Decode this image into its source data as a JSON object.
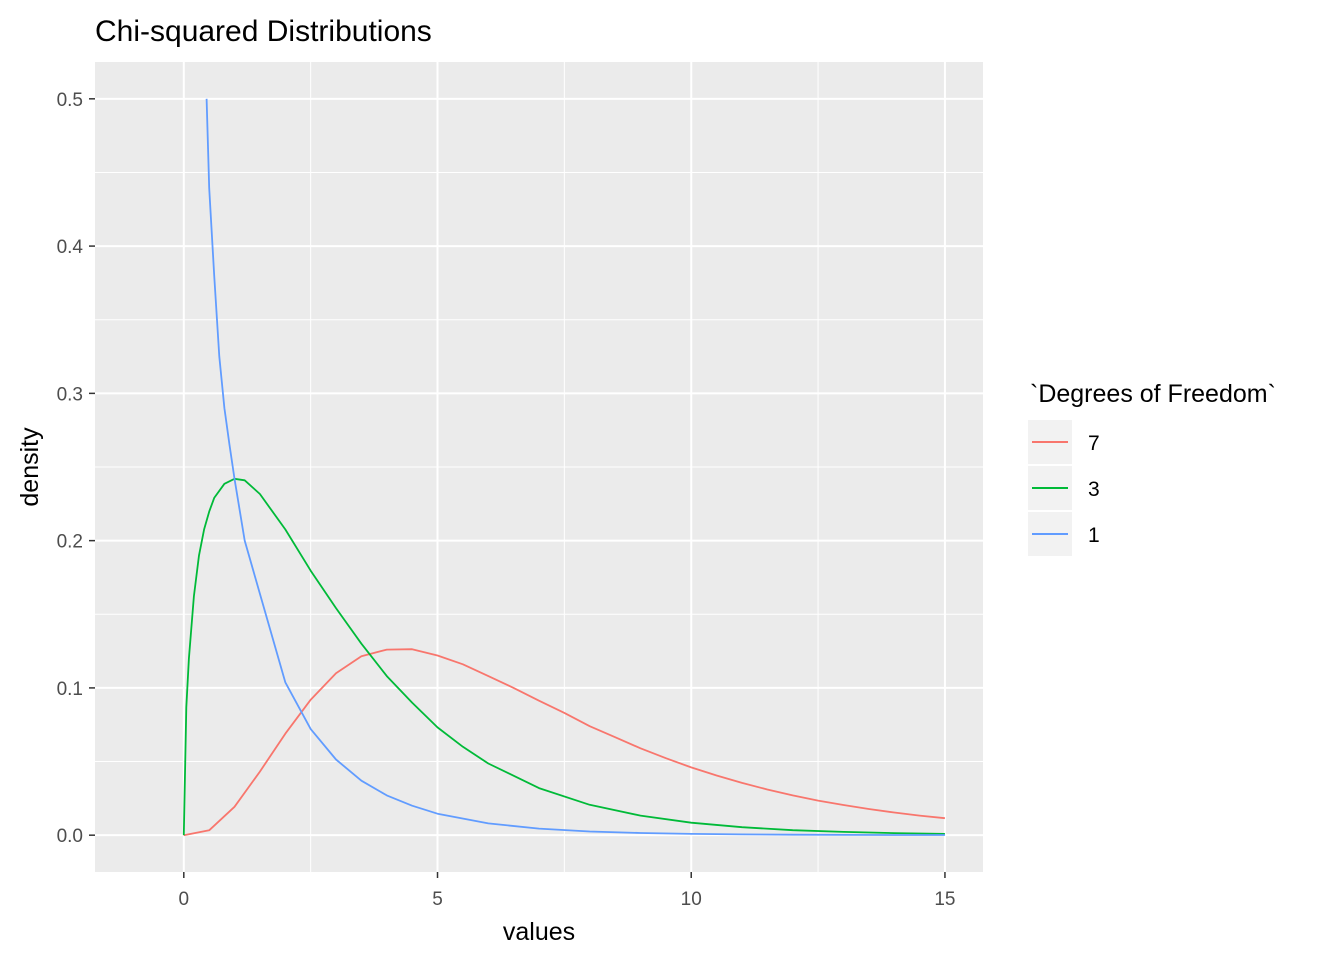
{
  "chart_data": {
    "type": "line",
    "title": "Chi-squared Distributions",
    "xlabel": "values",
    "ylabel": "density",
    "xlim": [
      -1.75,
      15.75
    ],
    "ylim": [
      -0.025,
      0.525
    ],
    "x_ticks": [
      0,
      5,
      10,
      15
    ],
    "x_tick_labels": [
      "0",
      "5",
      "10",
      "15"
    ],
    "y_ticks": [
      0.0,
      0.1,
      0.2,
      0.3,
      0.4,
      0.5
    ],
    "y_tick_labels": [
      "0.0",
      "0.1",
      "0.2",
      "0.3",
      "0.4",
      "0.5"
    ],
    "grid": true,
    "background": "#ebebeb",
    "legend": {
      "title": "`Degrees of Freedom`",
      "position": "right",
      "entries": [
        "7",
        "3",
        "1"
      ]
    },
    "series": [
      {
        "name": "7",
        "color": "#f8766d",
        "x": [
          0,
          0.5,
          1,
          1.5,
          2,
          2.5,
          3,
          3.5,
          4,
          4.5,
          5,
          5.5,
          6,
          6.5,
          7,
          7.5,
          8,
          8.5,
          9,
          9.5,
          10,
          10.5,
          11,
          11.5,
          12,
          12.5,
          13,
          13.5,
          14,
          14.5,
          15
        ],
        "y": [
          0,
          0.0033,
          0.0193,
          0.0432,
          0.0689,
          0.092,
          0.11,
          0.1215,
          0.126,
          0.1263,
          0.122,
          0.116,
          0.108,
          0.1,
          0.0913,
          0.083,
          0.074,
          0.0665,
          0.059,
          0.0523,
          0.046,
          0.0405,
          0.0355,
          0.031,
          0.027,
          0.0235,
          0.0205,
          0.0178,
          0.0154,
          0.0133,
          0.0115
        ]
      },
      {
        "name": "3",
        "color": "#00ba38",
        "x": [
          0,
          0.05,
          0.1,
          0.2,
          0.3,
          0.4,
          0.5,
          0.6,
          0.8,
          1,
          1.2,
          1.5,
          2,
          2.5,
          3,
          3.5,
          4,
          4.5,
          5,
          5.5,
          6,
          7,
          8,
          9,
          10,
          11,
          12,
          13,
          14,
          15
        ],
        "y": [
          0,
          0.0868,
          0.12,
          0.1623,
          0.19,
          0.2076,
          0.2197,
          0.229,
          0.2386,
          0.242,
          0.241,
          0.2317,
          0.2076,
          0.1796,
          0.1542,
          0.13,
          0.108,
          0.09,
          0.0732,
          0.06,
          0.0487,
          0.032,
          0.0206,
          0.0133,
          0.0085,
          0.0054,
          0.0034,
          0.0022,
          0.0014,
          0.0009
        ]
      },
      {
        "name": "1",
        "color": "#619cff",
        "x": [
          0.45,
          0.5,
          0.6,
          0.7,
          0.8,
          0.9,
          1,
          1.2,
          1.5,
          2,
          2.5,
          3,
          3.5,
          4,
          4.5,
          5,
          6,
          7,
          8,
          9,
          10,
          11,
          12,
          13,
          14,
          15
        ],
        "y": [
          0.5,
          0.4394,
          0.38,
          0.325,
          0.29,
          0.265,
          0.242,
          0.2,
          0.164,
          0.1038,
          0.072,
          0.0514,
          0.037,
          0.027,
          0.02,
          0.0146,
          0.008,
          0.0045,
          0.0025,
          0.0015,
          0.0009,
          0.0005,
          0.0003,
          0.0002,
          0.0001,
          0.0001
        ]
      }
    ]
  }
}
